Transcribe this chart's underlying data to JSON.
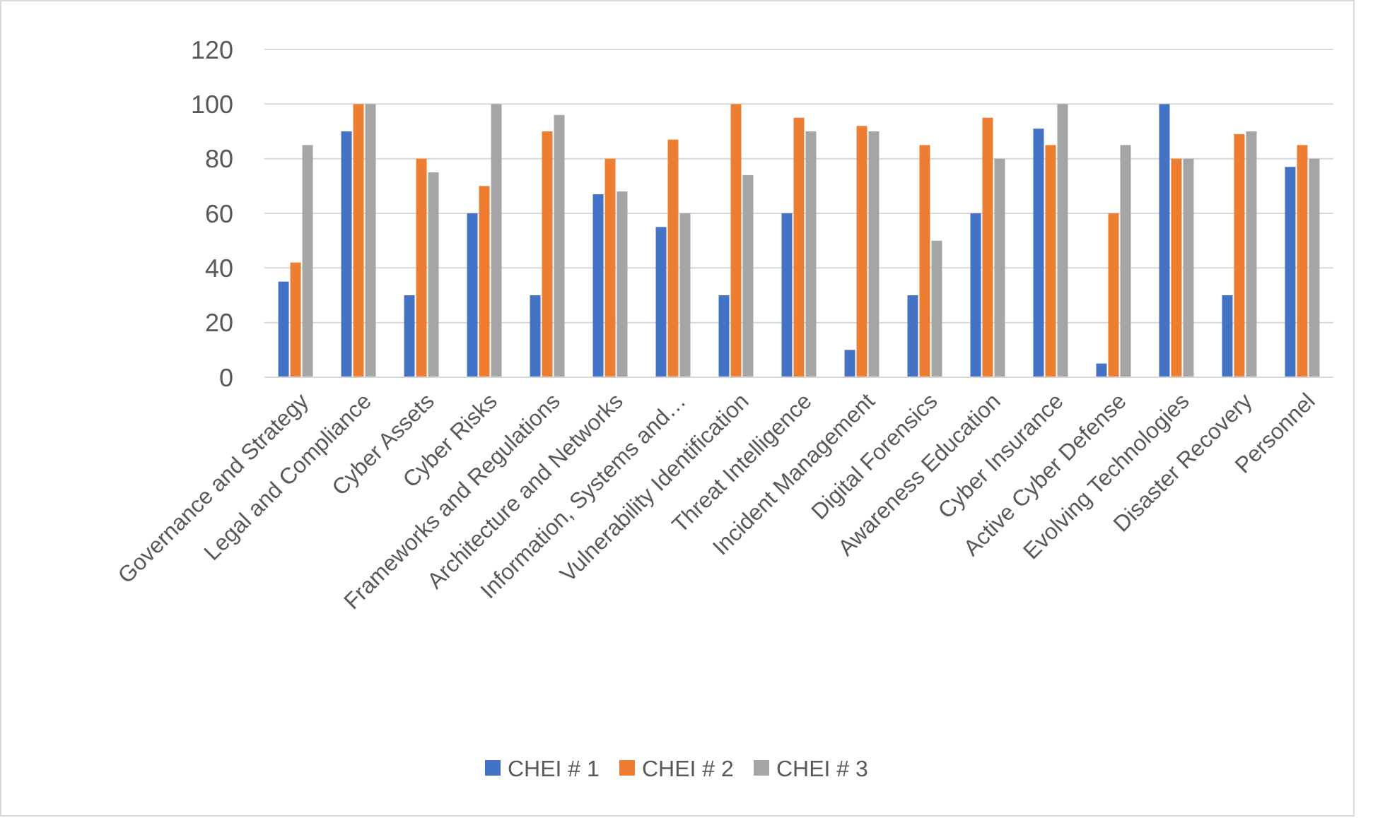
{
  "chart_data": {
    "type": "bar",
    "categories": [
      "Governance and Strategy",
      "Legal and Compliance",
      "Cyber Assets",
      "Cyber Risks",
      "Frameworks and Regulations",
      "Architecture and Networks",
      "Information, Systems and…",
      "Vulnerability Identification",
      "Threat Intelligence",
      "Incident Management",
      "Digital Forensics",
      "Awareness Education",
      "Cyber Insurance",
      "Active Cyber Defense",
      "Evolving Technologies",
      "Disaster Recovery",
      "Personnel"
    ],
    "series": [
      {
        "name": "CHEI # 1",
        "color": "#4472c4",
        "values": [
          35,
          90,
          30,
          60,
          30,
          67,
          55,
          30,
          60,
          10,
          30,
          60,
          91,
          5,
          100,
          30,
          77
        ]
      },
      {
        "name": "CHEI # 2",
        "color": "#ed7d31",
        "values": [
          42,
          100,
          80,
          70,
          90,
          80,
          87,
          100,
          95,
          92,
          85,
          95,
          85,
          60,
          80,
          89,
          85
        ]
      },
      {
        "name": "CHEI # 3",
        "color": "#a5a5a5",
        "values": [
          85,
          100,
          75,
          100,
          96,
          68,
          60,
          74,
          90,
          90,
          50,
          80,
          100,
          85,
          80,
          90,
          80
        ]
      }
    ],
    "ylim": [
      0,
      120
    ],
    "yticks": [
      0,
      20,
      40,
      60,
      80,
      100,
      120
    ],
    "grid": "y",
    "legend": "bottom"
  }
}
